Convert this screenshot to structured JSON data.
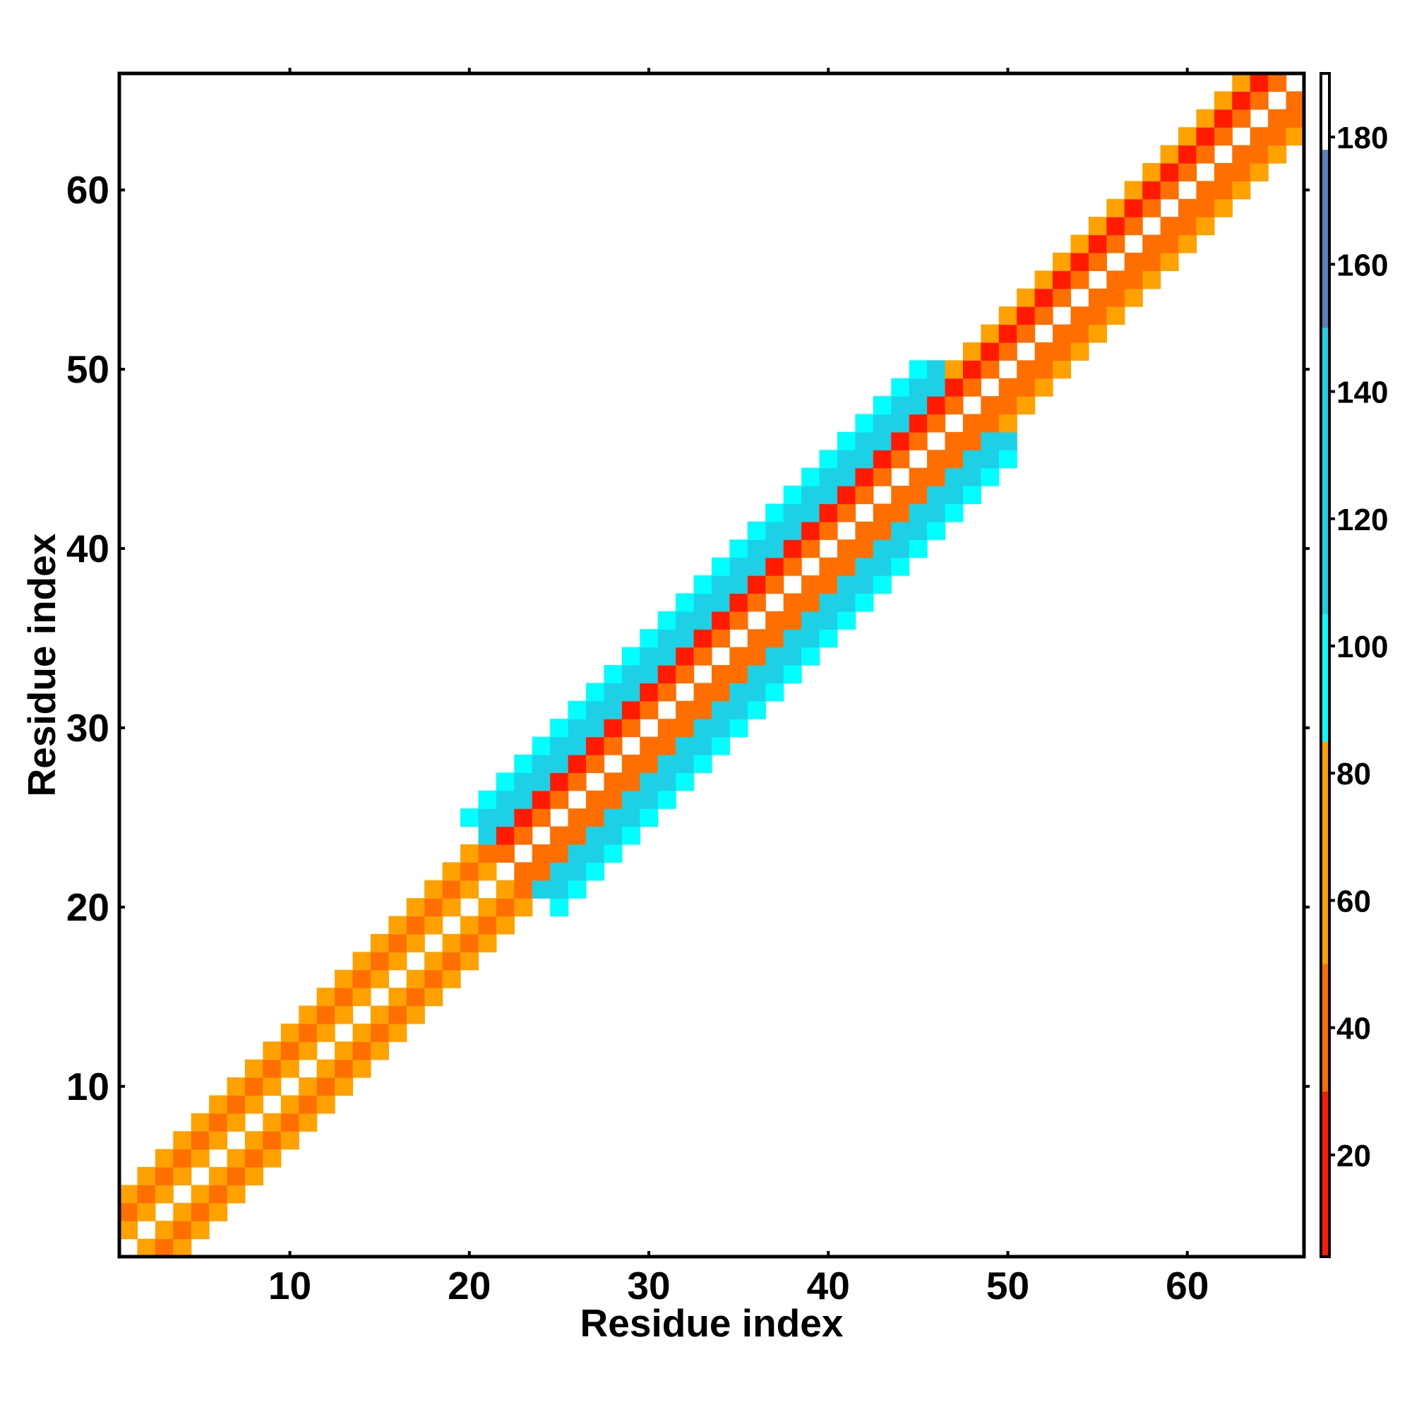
{
  "chart_data": {
    "type": "heatmap",
    "title": "",
    "xlabel": "Residue index",
    "ylabel": "Residue index",
    "xlim": [
      0.5,
      66.5
    ],
    "ylim": [
      0.5,
      66.5
    ],
    "x_ticks": [
      10,
      20,
      30,
      40,
      50,
      60
    ],
    "y_ticks": [
      10,
      20,
      30,
      40,
      50,
      60
    ],
    "colorbar": {
      "range": [
        4,
        190
      ],
      "ticks": [
        20,
        40,
        60,
        80,
        100,
        120,
        140,
        160,
        180
      ],
      "bands": [
        {
          "from": 4,
          "to": 30,
          "color": "#ff1a00"
        },
        {
          "from": 30,
          "to": 50,
          "color": "#ff6f00"
        },
        {
          "from": 50,
          "to": 85,
          "color": "#ffa200"
        },
        {
          "from": 85,
          "to": 105,
          "color": "#00ffff"
        },
        {
          "from": 105,
          "to": 150,
          "color": "#1ed0e6"
        },
        {
          "from": 150,
          "to": 178,
          "color": "#5a7fbf"
        },
        {
          "from": 178,
          "to": 190,
          "color": "#ffffff"
        }
      ]
    },
    "colors": {
      "red": "#ff1a00",
      "orange": "#ff6f00",
      "amber": "#ffa200",
      "cyan": "#00ffff",
      "teal": "#1ed0e6"
    },
    "band_rule": "cell (i,j) shown when |i-j| <= half-width; value taken from diagonal offset and region",
    "cells_note": "values per residue pair in degrees-like units",
    "regions": [
      {
        "from": 1,
        "to": 22,
        "halfwidth": 3,
        "values_by_offset": [
          null,
          50,
          35,
          65
        ]
      },
      {
        "from": 22,
        "to": 48,
        "halfwidth": 5,
        "values_by_offset": [
          null,
          45,
          25,
          120,
          110,
          95
        ]
      },
      {
        "from": 48,
        "to": 66,
        "halfwidth": 3,
        "values_by_offset": [
          null,
          45,
          30,
          70
        ]
      }
    ]
  }
}
